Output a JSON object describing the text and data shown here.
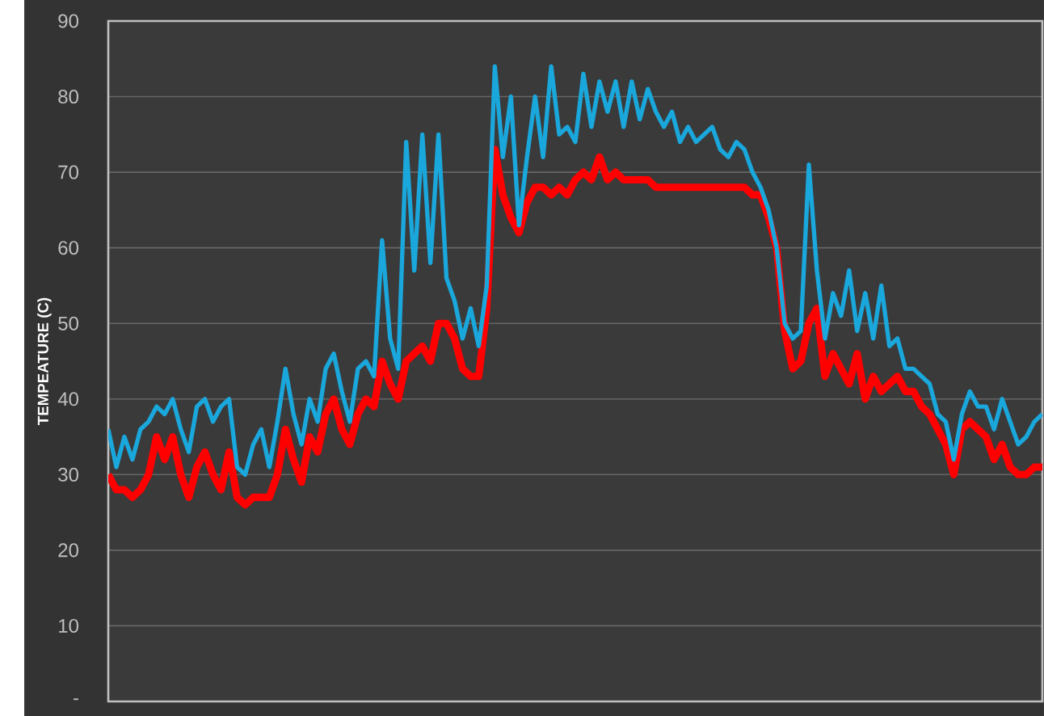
{
  "chart_data": {
    "type": "line",
    "ylabel": "TEMPEATURE (C)",
    "categories": [
      null,
      null,
      null,
      null,
      null,
      null,
      null,
      null,
      null,
      null,
      null,
      null,
      null,
      null,
      null,
      null,
      null,
      null,
      null,
      null,
      null,
      null,
      null,
      null,
      null,
      null,
      null,
      null,
      null,
      null,
      null,
      null,
      null,
      null,
      null,
      null,
      null,
      null,
      null,
      null,
      null,
      null,
      null,
      null,
      null,
      null,
      null,
      null,
      null,
      null,
      null,
      null,
      null,
      null,
      null,
      null,
      null,
      null,
      null,
      null,
      null,
      null,
      null,
      null,
      null,
      null,
      null,
      null,
      null,
      null,
      null,
      null,
      null,
      null,
      null,
      null,
      null,
      null,
      null,
      null,
      null,
      null,
      null,
      null,
      null,
      null,
      null,
      null,
      null,
      null,
      null,
      null,
      null,
      null,
      null,
      null,
      null,
      null,
      null,
      null,
      null,
      null,
      null,
      null,
      null,
      null,
      null,
      null,
      null,
      null,
      null,
      null,
      null,
      null,
      null,
      null,
      null
    ],
    "series": [
      {
        "color": "#ff0000",
        "values": [
          30,
          28,
          28,
          27,
          28,
          30,
          35,
          32,
          35,
          30,
          27,
          31,
          33,
          30,
          28,
          33,
          27,
          26,
          27,
          27,
          27,
          30,
          36,
          32,
          29,
          35,
          33,
          38,
          40,
          36,
          34,
          38,
          40,
          39,
          45,
          42,
          40,
          45,
          46,
          47,
          45,
          50,
          50,
          48,
          44,
          43,
          43,
          52,
          73,
          67,
          64,
          62,
          66,
          68,
          68,
          67,
          68,
          67,
          69,
          70,
          69,
          72,
          69,
          70,
          69,
          69,
          69,
          69,
          68,
          68,
          68,
          68,
          68,
          68,
          68,
          68,
          68,
          68,
          68,
          68,
          67,
          67,
          64,
          60,
          49,
          44,
          45,
          50,
          52,
          43,
          46,
          44,
          42,
          46,
          40,
          43,
          41,
          42,
          43,
          41,
          41,
          39,
          38,
          36,
          34,
          30,
          36,
          37,
          36,
          35,
          32,
          34,
          31,
          30,
          30,
          31,
          31
        ]
      },
      {
        "color": "#1aa7dc",
        "values": [
          36,
          31,
          35,
          32,
          36,
          37,
          39,
          38,
          40,
          36,
          33,
          39,
          40,
          37,
          39,
          40,
          31,
          30,
          34,
          36,
          31,
          37,
          44,
          38,
          34,
          40,
          37,
          44,
          46,
          41,
          37,
          44,
          45,
          43,
          61,
          48,
          44,
          74,
          57,
          75,
          58,
          75,
          56,
          53,
          48,
          52,
          47,
          55,
          84,
          72,
          80,
          63,
          72,
          80,
          72,
          84,
          75,
          76,
          74,
          83,
          76,
          82,
          78,
          82,
          76,
          82,
          77,
          81,
          78,
          76,
          78,
          74,
          76,
          74,
          75,
          76,
          73,
          72,
          74,
          73,
          70,
          68,
          65,
          60,
          50,
          48,
          49,
          71,
          57,
          48,
          54,
          51,
          57,
          49,
          54,
          48,
          55,
          47,
          48,
          44,
          44,
          43,
          42,
          38,
          37,
          32,
          38,
          41,
          39,
          39,
          36,
          40,
          37,
          34,
          35,
          37,
          38
        ]
      }
    ],
    "ylim": [
      0,
      90
    ],
    "yticks": [
      {
        "value": 0,
        "label": "-"
      },
      10,
      20,
      30,
      40,
      50,
      60,
      70,
      80,
      90
    ],
    "grid": "y",
    "line_style": "solid"
  }
}
